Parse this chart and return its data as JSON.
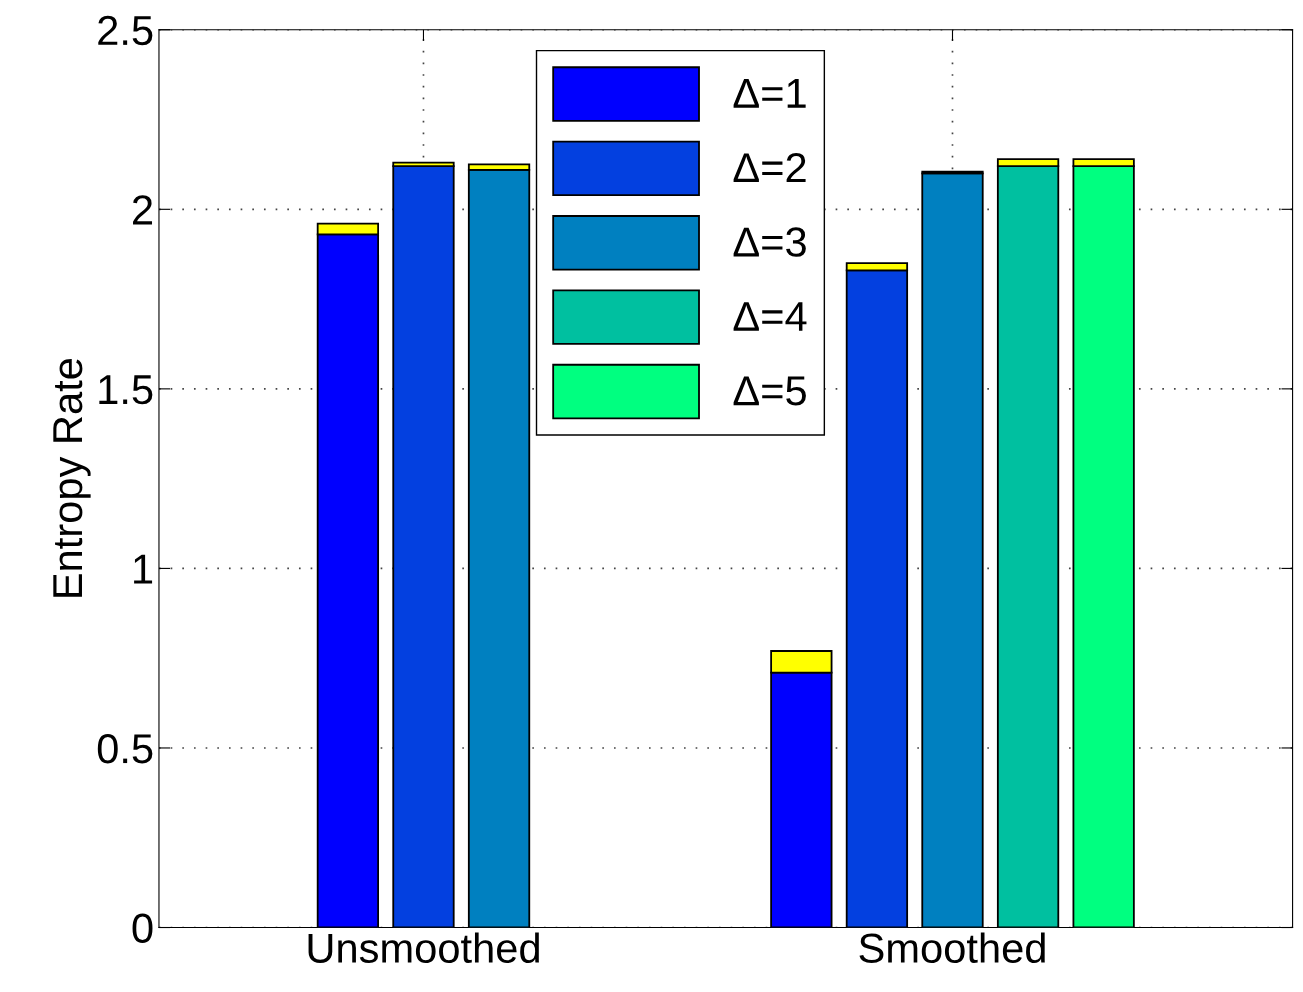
{
  "chart_data": {
    "type": "bar",
    "stacked": true,
    "ylabel": "Entropy Rate",
    "categories": [
      null,
      "Unsmoothed",
      null,
      null,
      null,
      null,
      null,
      null,
      "Smoothed",
      null,
      null
    ],
    "ylim": [
      0,
      2.5
    ],
    "yticks": [
      0,
      0.5,
      1,
      1.5,
      2,
      2.5
    ],
    "grid": true,
    "legend": "top",
    "series": [
      {
        "name": "Δ=1",
        "color": "#0000ff",
        "values": [
          1.93,
          null,
          null,
          null,
          null,
          null,
          0.71,
          null,
          null,
          null,
          null
        ]
      },
      {
        "name": "Δ=2",
        "color": "#0340e0",
        "values": [
          null,
          2.12,
          null,
          null,
          null,
          null,
          null,
          1.83,
          null,
          null,
          null
        ]
      },
      {
        "name": "Δ=3",
        "color": "#0080c0",
        "values": [
          null,
          null,
          2.11,
          null,
          null,
          null,
          null,
          null,
          2.1,
          null,
          null
        ]
      },
      {
        "name": "Δ=4",
        "color": "#00c0a0",
        "values": [
          null,
          null,
          null,
          null,
          null,
          null,
          null,
          null,
          null,
          2.12,
          null
        ]
      },
      {
        "name": "Δ=5",
        "color": "#00ff80",
        "values": [
          null,
          null,
          null,
          null,
          null,
          null,
          null,
          null,
          null,
          null,
          2.12
        ]
      },
      {
        "color": "#ffff00",
        "values": [
          0.03,
          0.01,
          0.015,
          null,
          null,
          null,
          0.06,
          0.02,
          0.005,
          0.02,
          0.02
        ]
      }
    ]
  }
}
